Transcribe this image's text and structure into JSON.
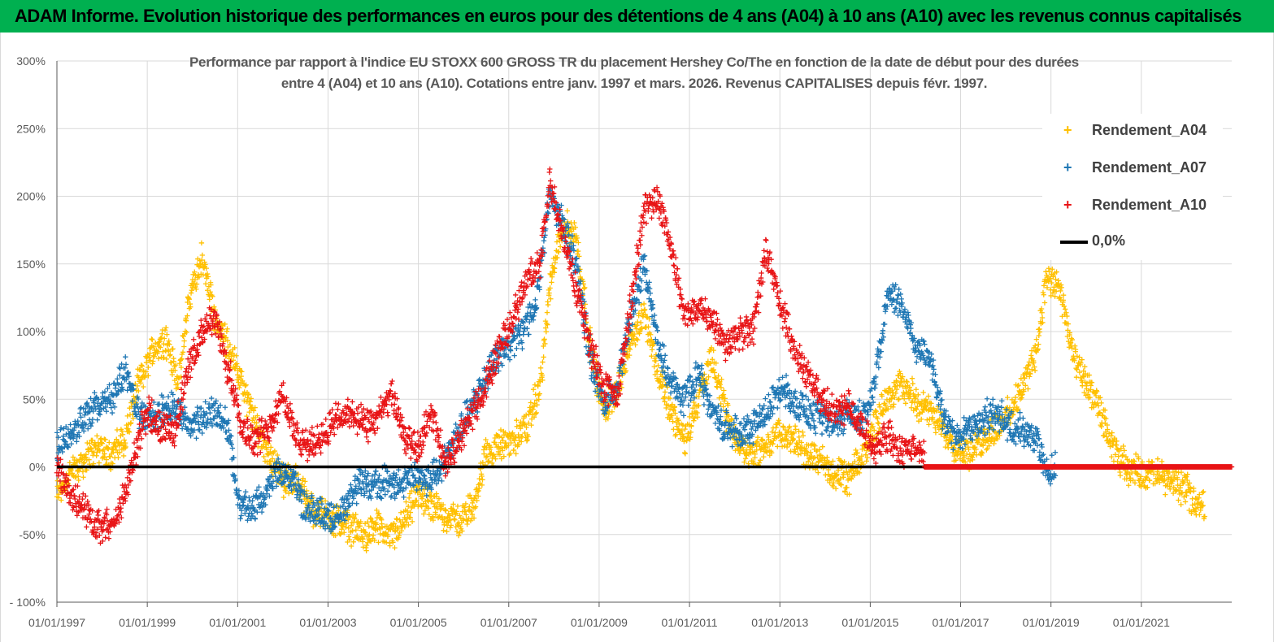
{
  "banner": {
    "title": "ADAM Informe. Evolution historique des performances en euros pour des détentions de 4 ans (A04) à 10 ans (A10) avec les revenus connus capitalisés"
  },
  "colors": {
    "banner_bg": "#00b050",
    "a04": "#ffc000",
    "a07": "#1f77b4",
    "a10": "#e81416",
    "zero": "#000000",
    "grid": "#d9d9d9"
  },
  "chart_data": {
    "type": "scatter",
    "title_line1": "Performance par rapport à l'indice EU STOXX 600 GROSS TR  du placement Hershey Co/The en fonction de la date de début pour des durées",
    "title_line2": "entre 4 (A04) et 10 ans (A10). Cotations entre janv. 1997 et mars. 2026. Revenus CAPITALISES depuis févr. 1997.",
    "xlabel": "",
    "ylabel": "",
    "xlim": [
      1997.0,
      2023.0
    ],
    "ylim": [
      -100,
      300
    ],
    "y_ticks": [
      -100,
      -50,
      0,
      50,
      100,
      150,
      200,
      250,
      300
    ],
    "y_tick_labels": [
      "- 100%",
      "-50%",
      "0%",
      "50%",
      "100%",
      "150%",
      "200%",
      "250%",
      "300%"
    ],
    "x_ticks": [
      1997,
      1999,
      2001,
      2003,
      2005,
      2007,
      2009,
      2011,
      2013,
      2015,
      2017,
      2019,
      2021
    ],
    "x_tick_labels": [
      "01/01/1997",
      "01/01/1999",
      "01/01/2001",
      "01/01/2003",
      "01/01/2005",
      "01/01/2007",
      "01/01/2009",
      "01/01/2011",
      "01/01/2013",
      "01/01/2015",
      "01/01/2017",
      "01/01/2019",
      "01/01/2021"
    ],
    "legend_position": "top-right",
    "series": [
      {
        "name": "Rendement_A04",
        "marker": "+",
        "x": [
          1997.0,
          1997.3,
          1997.6,
          1997.9,
          1998.2,
          1998.5,
          1998.8,
          1999.1,
          1999.4,
          1999.7,
          1999.9,
          2000.2,
          2000.5,
          2000.8,
          2001.1,
          2001.4,
          2001.7,
          2002.0,
          2002.3,
          2002.6,
          2002.9,
          2003.2,
          2003.5,
          2003.8,
          2004.1,
          2004.4,
          2004.7,
          2005.0,
          2005.3,
          2005.6,
          2005.9,
          2006.2,
          2006.5,
          2006.8,
          2007.1,
          2007.4,
          2007.7,
          2007.9,
          2008.2,
          2008.5,
          2008.8,
          2009.1,
          2009.4,
          2009.7,
          2010.0,
          2010.3,
          2010.6,
          2010.9,
          2011.2,
          2011.5,
          2011.8,
          2012.1,
          2012.4,
          2012.7,
          2013.0,
          2013.3,
          2013.6,
          2013.9,
          2014.2,
          2014.5,
          2014.8,
          2015.1,
          2015.4,
          2015.7,
          2016.0,
          2016.3,
          2016.6,
          2016.9,
          2017.2,
          2017.5,
          2017.8,
          2018.1,
          2018.4,
          2018.7,
          2018.9,
          2019.2,
          2019.5,
          2019.8,
          2020.1,
          2020.4,
          2020.7,
          2021.0,
          2021.3,
          2021.6,
          2021.9,
          2022.2,
          2022.4
        ],
        "y": [
          -20,
          -5,
          5,
          15,
          10,
          20,
          60,
          85,
          95,
          60,
          120,
          155,
          110,
          90,
          60,
          30,
          10,
          -10,
          -10,
          -30,
          -35,
          -40,
          -45,
          -50,
          -45,
          -52,
          -40,
          -20,
          -30,
          -35,
          -40,
          -30,
          10,
          15,
          20,
          30,
          60,
          130,
          180,
          170,
          90,
          40,
          60,
          90,
          115,
          70,
          40,
          20,
          50,
          80,
          40,
          15,
          10,
          15,
          25,
          20,
          10,
          5,
          -5,
          -10,
          5,
          30,
          55,
          60,
          50,
          40,
          30,
          15,
          10,
          20,
          30,
          40,
          60,
          90,
          140,
          130,
          80,
          60,
          40,
          10,
          0,
          -5,
          -5,
          -10,
          -15,
          -25,
          -30
        ]
      },
      {
        "name": "Rendement_A07",
        "marker": "+",
        "x": [
          1997.0,
          1997.3,
          1997.6,
          1997.9,
          1998.2,
          1998.5,
          1998.8,
          1999.1,
          1999.4,
          1999.7,
          1999.9,
          2000.2,
          2000.5,
          2000.8,
          2001.0,
          2001.3,
          2001.6,
          2001.9,
          2002.2,
          2002.5,
          2002.8,
          2003.1,
          2003.4,
          2003.7,
          2004.0,
          2004.3,
          2004.6,
          2004.9,
          2005.2,
          2005.5,
          2005.8,
          2006.1,
          2006.4,
          2006.7,
          2007.0,
          2007.3,
          2007.6,
          2007.9,
          2008.2,
          2008.5,
          2008.8,
          2009.1,
          2009.4,
          2009.7,
          2010.0,
          2010.3,
          2010.6,
          2010.9,
          2011.2,
          2011.5,
          2011.8,
          2012.1,
          2012.4,
          2012.7,
          2013.0,
          2013.3,
          2013.6,
          2013.9,
          2014.2,
          2014.5,
          2014.8,
          2015.1,
          2015.4,
          2015.7,
          2016.0,
          2016.3,
          2016.6,
          2016.9,
          2017.2,
          2017.5,
          2017.8,
          2018.1,
          2018.4,
          2018.7,
          2018.9,
          2019.1
        ],
        "y": [
          15,
          25,
          35,
          45,
          50,
          70,
          40,
          35,
          45,
          40,
          30,
          35,
          40,
          30,
          -25,
          -35,
          -20,
          0,
          -10,
          -30,
          -35,
          -40,
          -30,
          -10,
          -15,
          -10,
          -15,
          -5,
          -10,
          0,
          20,
          40,
          60,
          80,
          90,
          100,
          120,
          200,
          180,
          150,
          80,
          45,
          60,
          110,
          150,
          90,
          60,
          50,
          70,
          40,
          30,
          25,
          30,
          40,
          60,
          50,
          40,
          35,
          30,
          40,
          35,
          60,
          130,
          120,
          90,
          80,
          40,
          20,
          30,
          35,
          40,
          30,
          25,
          20,
          -5,
          5
        ]
      },
      {
        "name": "Rendement_A10",
        "marker": "+",
        "x": [
          1997.0,
          1997.2,
          1997.4,
          1997.6,
          1997.8,
          1998.0,
          1998.2,
          1998.4,
          1998.6,
          1998.8,
          1999.0,
          1999.3,
          1999.6,
          1999.9,
          2000.2,
          2000.5,
          2000.8,
          2001.1,
          2001.4,
          2001.7,
          2002.0,
          2002.3,
          2002.6,
          2002.9,
          2003.2,
          2003.5,
          2003.8,
          2004.1,
          2004.4,
          2004.7,
          2005.0,
          2005.3,
          2005.6,
          2005.9,
          2006.2,
          2006.5,
          2006.8,
          2007.1,
          2007.4,
          2007.7,
          2007.9,
          2008.2,
          2008.5,
          2008.8,
          2009.1,
          2009.4,
          2009.7,
          2010.0,
          2010.3,
          2010.6,
          2010.9,
          2011.2,
          2011.5,
          2011.8,
          2012.1,
          2012.4,
          2012.7,
          2013.0,
          2013.3,
          2013.6,
          2013.9,
          2014.2,
          2014.5,
          2014.8,
          2015.1,
          2015.4,
          2015.7,
          2016.0,
          2016.2
        ],
        "y": [
          0,
          -15,
          -25,
          -30,
          -40,
          -45,
          -40,
          -30,
          -10,
          20,
          40,
          30,
          25,
          70,
          100,
          110,
          70,
          30,
          20,
          30,
          55,
          20,
          15,
          25,
          35,
          40,
          30,
          35,
          55,
          20,
          15,
          40,
          0,
          20,
          40,
          60,
          90,
          110,
          140,
          150,
          210,
          170,
          130,
          90,
          60,
          50,
          120,
          190,
          200,
          160,
          110,
          120,
          110,
          90,
          100,
          100,
          160,
          120,
          90,
          70,
          50,
          40,
          45,
          30,
          15,
          25,
          10,
          15,
          10
        ]
      },
      {
        "name": "0,0%",
        "marker": "line",
        "x": [
          1997.0,
          2023.0
        ],
        "y": [
          0,
          0
        ]
      }
    ],
    "flat_a10_segment": {
      "x_start": 2016.2,
      "x_end": 2023.0,
      "y": 0
    }
  }
}
